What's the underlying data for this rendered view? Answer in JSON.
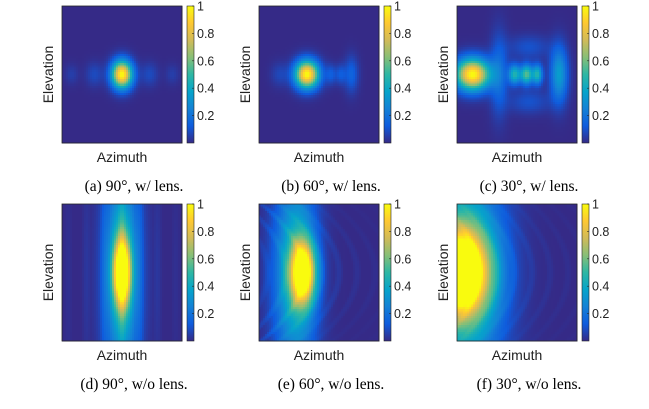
{
  "chart_data": [
    {
      "type": "heatmap",
      "caption": "(a) 90°, w/ lens.",
      "xlabel": "Azimuth",
      "ylabel": "Elevation",
      "colorbar": {
        "min": 0,
        "max": 1,
        "ticks": [
          "0.2",
          "0.4",
          "0.6",
          "0.8",
          "1"
        ]
      },
      "colormap": "parula",
      "blobs": [
        {
          "x": 0.5,
          "y": 0.5,
          "sx": 0.06,
          "sy": 0.07,
          "a": 1.0
        },
        {
          "x": 0.27,
          "y": 0.5,
          "sx": 0.05,
          "sy": 0.06,
          "a": 0.08
        },
        {
          "x": 0.73,
          "y": 0.5,
          "sx": 0.05,
          "sy": 0.06,
          "a": 0.08
        },
        {
          "x": 0.08,
          "y": 0.5,
          "sx": 0.04,
          "sy": 0.05,
          "a": 0.05
        },
        {
          "x": 0.92,
          "y": 0.5,
          "sx": 0.04,
          "sy": 0.05,
          "a": 0.05
        }
      ],
      "fringes": null
    },
    {
      "type": "heatmap",
      "caption": "(b) 60°, w/ lens.",
      "xlabel": "Azimuth",
      "ylabel": "Elevation",
      "colorbar": {
        "min": 0,
        "max": 1,
        "ticks": [
          "0.2",
          "0.4",
          "0.6",
          "0.8",
          "1"
        ]
      },
      "colormap": "parula",
      "blobs": [
        {
          "x": 0.4,
          "y": 0.5,
          "sx": 0.07,
          "sy": 0.07,
          "a": 1.0
        },
        {
          "x": 0.6,
          "y": 0.5,
          "sx": 0.03,
          "sy": 0.05,
          "a": 0.12
        },
        {
          "x": 0.68,
          "y": 0.5,
          "sx": 0.03,
          "sy": 0.05,
          "a": 0.12
        },
        {
          "x": 0.77,
          "y": 0.5,
          "sx": 0.04,
          "sy": 0.09,
          "a": 0.15
        },
        {
          "x": 0.17,
          "y": 0.5,
          "sx": 0.05,
          "sy": 0.06,
          "a": 0.07
        }
      ],
      "fringes": null
    },
    {
      "type": "heatmap",
      "caption": "(c) 30°, w/ lens.",
      "xlabel": "Azimuth",
      "ylabel": "Elevation",
      "colorbar": {
        "min": 0,
        "max": 1,
        "ticks": [
          "0.2",
          "0.4",
          "0.6",
          "0.8",
          "1"
        ]
      },
      "colormap": "parula",
      "blobs": [
        {
          "x": 0.13,
          "y": 0.5,
          "sx": 0.1,
          "sy": 0.08,
          "a": 1.0
        },
        {
          "x": 0.48,
          "y": 0.5,
          "sx": 0.035,
          "sy": 0.05,
          "a": 0.45
        },
        {
          "x": 0.58,
          "y": 0.5,
          "sx": 0.035,
          "sy": 0.05,
          "a": 0.55
        },
        {
          "x": 0.67,
          "y": 0.5,
          "sx": 0.03,
          "sy": 0.05,
          "a": 0.45
        },
        {
          "x": 0.85,
          "y": 0.5,
          "sx": 0.05,
          "sy": 0.14,
          "a": 0.35
        },
        {
          "x": 0.35,
          "y": 0.5,
          "sx": 0.05,
          "sy": 0.2,
          "a": 0.18
        },
        {
          "x": 0.6,
          "y": 0.3,
          "sx": 0.12,
          "sy": 0.06,
          "a": 0.1
        },
        {
          "x": 0.6,
          "y": 0.7,
          "sx": 0.12,
          "sy": 0.06,
          "a": 0.1
        }
      ],
      "fringes": null
    },
    {
      "type": "heatmap",
      "caption": "(d) 90°, w/o lens.",
      "xlabel": "Azimuth",
      "ylabel": "Elevation",
      "colorbar": {
        "min": 0,
        "max": 1,
        "ticks": [
          "0.2",
          "0.4",
          "0.6",
          "0.8",
          "1"
        ]
      },
      "colormap": "parula",
      "blobs": [
        {
          "x": 0.5,
          "y": 0.5,
          "sx": 0.05,
          "sy": 0.17,
          "a": 1.0
        },
        {
          "x": 0.5,
          "y": 0.5,
          "sx": 0.1,
          "sy": 0.6,
          "a": 0.45
        }
      ],
      "fringes": {
        "curvature": 0.0,
        "center": 0.5,
        "decay": 0.25,
        "amp": 0.09
      }
    },
    {
      "type": "heatmap",
      "caption": "(e) 60°, w/o lens.",
      "xlabel": "Azimuth",
      "ylabel": "Elevation",
      "colorbar": {
        "min": 0,
        "max": 1,
        "ticks": [
          "0.2",
          "0.4",
          "0.6",
          "0.8",
          "1"
        ]
      },
      "colormap": "parula",
      "blobs": [
        {
          "x": 0.37,
          "y": 0.5,
          "sx": 0.07,
          "sy": 0.16,
          "a": 1.0
        },
        {
          "x": 0.3,
          "y": 0.5,
          "sx": 0.12,
          "sy": 0.5,
          "a": 0.45
        }
      ],
      "fringes": {
        "curvature": 0.35,
        "center": 0.37,
        "decay": 0.3,
        "amp": 0.08
      }
    },
    {
      "type": "heatmap",
      "caption": "(f) 30°, w/o lens.",
      "xlabel": "Azimuth",
      "ylabel": "Elevation",
      "colorbar": {
        "min": 0,
        "max": 1,
        "ticks": [
          "0.2",
          "0.4",
          "0.6",
          "0.8",
          "1"
        ]
      },
      "colormap": "parula",
      "blobs": [
        {
          "x": 0.03,
          "y": 0.5,
          "sx": 0.17,
          "sy": 0.22,
          "a": 1.0
        },
        {
          "x": 0.05,
          "y": 0.5,
          "sx": 0.22,
          "sy": 0.55,
          "a": 0.5
        }
      ],
      "fringes": {
        "curvature": 0.3,
        "center": 0.03,
        "decay": 0.45,
        "amp": 0.09
      }
    }
  ]
}
